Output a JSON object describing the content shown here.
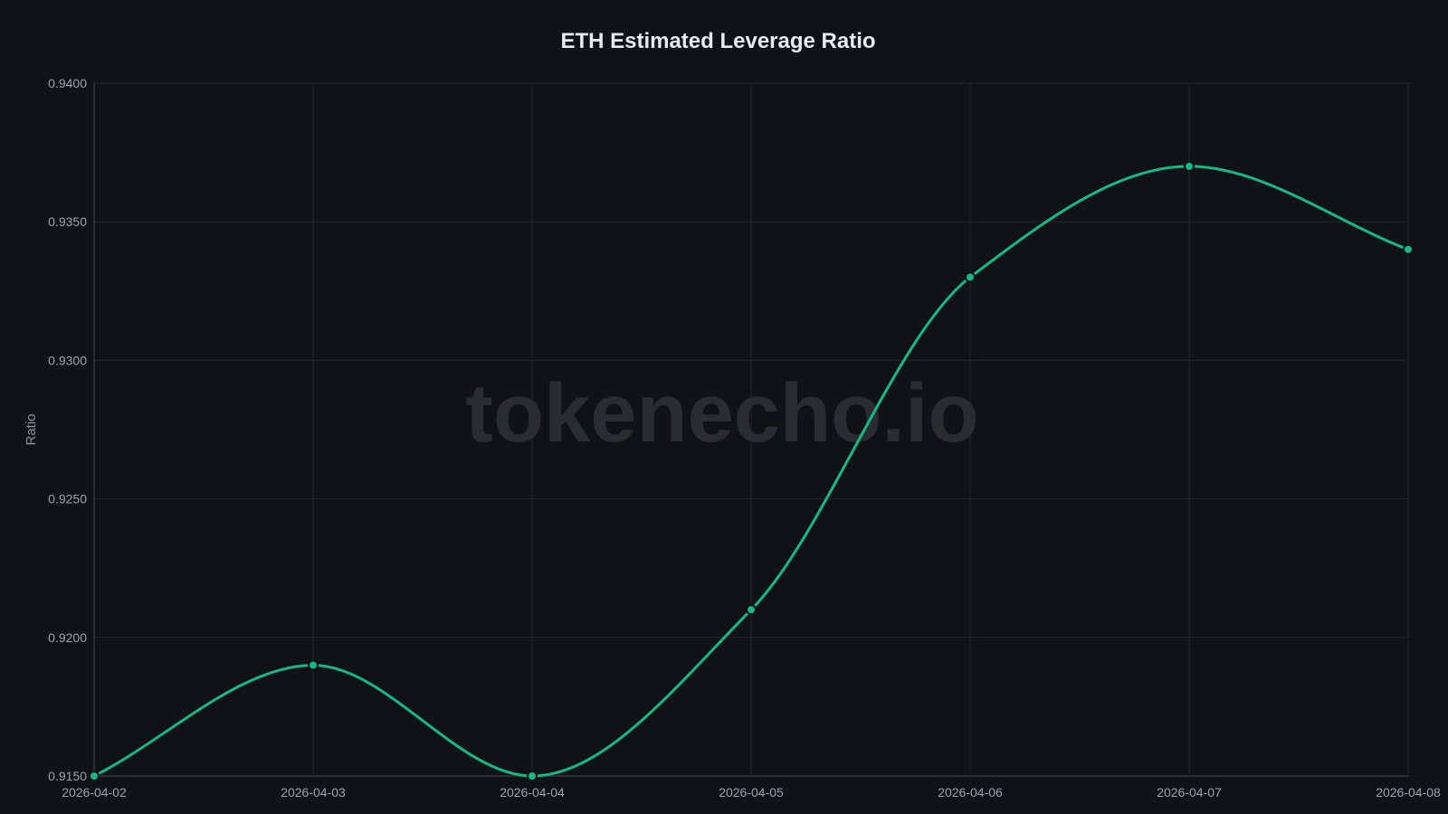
{
  "chart_data": {
    "type": "line",
    "title": "ETH Estimated Leverage Ratio",
    "xlabel": "",
    "ylabel": "Ratio",
    "x": [
      "2026-04-02",
      "2026-04-03",
      "2026-04-04",
      "2026-04-05",
      "2026-04-06",
      "2026-04-07",
      "2026-04-08"
    ],
    "series": [
      {
        "name": "ETH Estimated Leverage Ratio",
        "values": [
          0.915,
          0.919,
          0.915,
          0.921,
          0.933,
          0.937,
          0.934
        ],
        "color": "#16b981"
      }
    ],
    "ylim": [
      0.915,
      0.94
    ],
    "yticks": [
      "0.9400",
      "0.9350",
      "0.9300",
      "0.9250",
      "0.9200",
      "0.9150"
    ],
    "grid": true,
    "smooth": true,
    "legend": "none"
  },
  "watermark": "tokenecho.io",
  "colors": {
    "background": "#111217",
    "line": "#16b981",
    "grid": "#23252b",
    "axis": "#3a4048",
    "text": "#9aa3b2",
    "title": "#e6eaf2"
  }
}
